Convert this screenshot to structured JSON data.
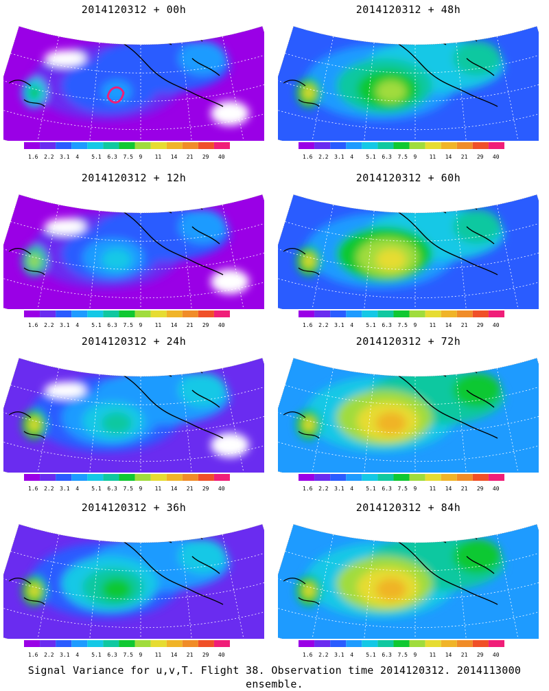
{
  "panels": [
    {
      "title": "2014120312 + 00h",
      "stage": 0
    },
    {
      "title": "2014120312 + 48h",
      "stage": 4
    },
    {
      "title": "2014120312 + 12h",
      "stage": 1
    },
    {
      "title": "2014120312 + 60h",
      "stage": 5
    },
    {
      "title": "2014120312 + 24h",
      "stage": 2
    },
    {
      "title": "2014120312 + 72h",
      "stage": 6
    },
    {
      "title": "2014120312 + 36h",
      "stage": 3
    },
    {
      "title": "2014120312 + 84h",
      "stage": 7
    }
  ],
  "colorbar": {
    "colors": [
      "#9a00e6",
      "#6a2cf0",
      "#2a5cff",
      "#1e9bff",
      "#14c8e6",
      "#10c8a0",
      "#10c832",
      "#a0dc3c",
      "#e6dc32",
      "#f0b428",
      "#f08c28",
      "#f05028",
      "#f01e78"
    ],
    "labels": [
      "1.6",
      "2.2",
      "3.1",
      "4",
      "5.1",
      "6.3",
      "7.5",
      "9",
      "11",
      "14",
      "21",
      "29",
      "40"
    ]
  },
  "caption": "Signal Variance for u,v,T. Flight 38. Observation time 2014120312. 2014113000 ensemble."
}
